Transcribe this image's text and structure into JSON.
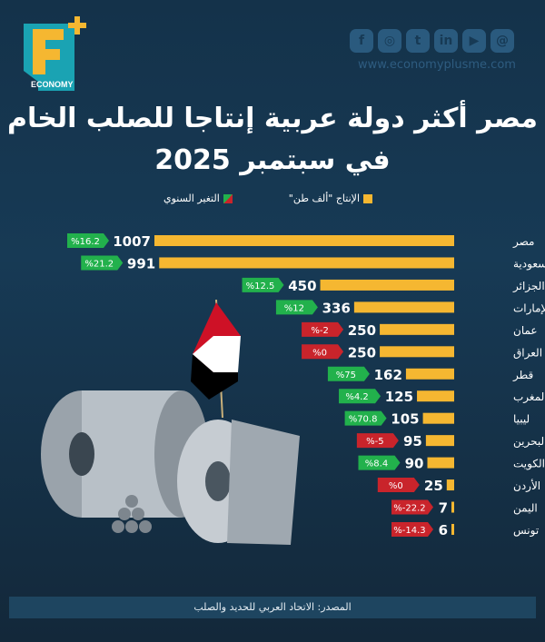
{
  "brand": {
    "logo_text": "ECONOMY",
    "website": "www.economyplusme.com",
    "social": [
      "facebook-icon",
      "instagram-icon",
      "twitter-icon",
      "linkedin-icon",
      "youtube-icon",
      "threads-icon"
    ]
  },
  "title": {
    "line1": "مصر أكثر دولة عربية إنتاجا للصلب الخام",
    "line2": "في سبتمبر 2025"
  },
  "legend": {
    "production": "الإنتاج \"ألف طن\"",
    "change": "التغير السنوي"
  },
  "colors": {
    "bar": "#f5b731",
    "positive": "#22b14c",
    "negative": "#c9242b",
    "background": "#173a55"
  },
  "chart_data": {
    "type": "bar",
    "orientation": "horizontal",
    "categories": [
      "مصر",
      "السعودية",
      "الجزائر",
      "الإمارات",
      "عمان",
      "العراق",
      "قطر",
      "المغرب",
      "ليبيا",
      "البحرين",
      "الكويت",
      "الأردن",
      "اليمن",
      "تونس"
    ],
    "series": [
      {
        "name": "الإنتاج \"ألف طن\"",
        "values": [
          1007,
          991,
          450,
          336,
          250,
          250,
          162,
          125,
          105,
          95,
          90,
          25,
          7,
          6
        ]
      },
      {
        "name": "التغير السنوي",
        "values": [
          16.2,
          21.2,
          12.5,
          12,
          -2,
          0,
          75,
          4.2,
          70.8,
          -5,
          8.4,
          0,
          -22.2,
          -14.3
        ]
      }
    ],
    "change_labels": [
      "%16.2",
      "%21.2",
      "%12.5",
      "%12",
      "%-2",
      "%0",
      "%75",
      "%4.2",
      "%70.8",
      "%-5",
      "%8.4",
      "%0",
      "%-22.2",
      "%-14.3"
    ],
    "change_sign": [
      "up",
      "up",
      "up",
      "up",
      "down",
      "down",
      "up",
      "up",
      "up",
      "down",
      "up",
      "down",
      "down",
      "down"
    ]
  },
  "source": "المصدر: الاتحاد العربي للحديد والصلب"
}
